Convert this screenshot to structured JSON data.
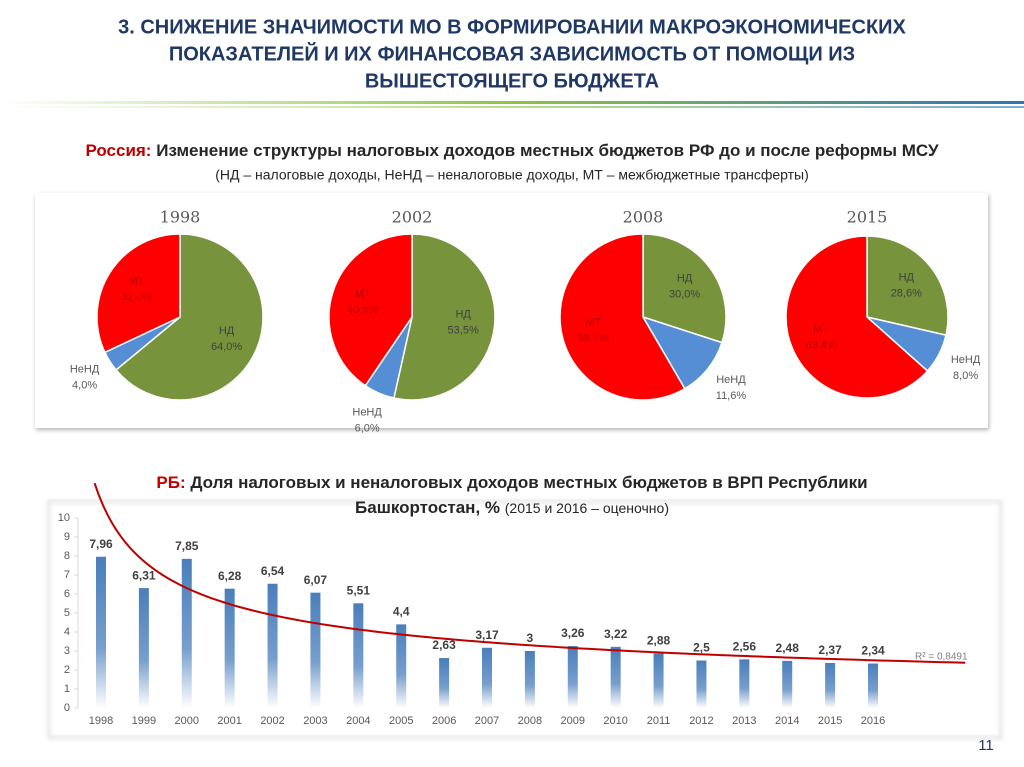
{
  "header": {
    "title_lines": [
      "3. СНИЖЕНИЕ ЗНАЧИМОСТИ МО В ФОРМИРОВАНИИ МАКРОЭКОНОМИЧЕСКИХ",
      "ПОКАЗАТЕЛЕЙ И ИХ ФИНАНСОВАЯ ЗАВИСИМОСТЬ ОТ ПОМОЩИ ИЗ",
      "ВЫШЕСТОЯЩЕГО БЮДЖЕТА"
    ]
  },
  "section1": {
    "label": "Россия:",
    "title": "Изменение структуры налоговых доходов местных бюджетов РФ до и после реформы МСУ",
    "subtitle": "(НД – налоговые доходы, НеНД – неналоговые доходы, МТ – межбюджетные трансферты)"
  },
  "section2": {
    "label": "РБ:",
    "title_lines": [
      "Доля налоговых и неналоговых доходов местных бюджетов в ВРП Республики",
      "Башкортостан, %"
    ],
    "note": "(2015 и 2016 – оценочно)"
  },
  "page_number": "11",
  "chart_data": [
    {
      "type": "pie",
      "title": "1998",
      "categories": [
        "НД",
        "НеНД",
        "МТ"
      ],
      "values": [
        64.0,
        4.0,
        32.0
      ],
      "value_labels": [
        "64,0%",
        "4,0%",
        "32,0%"
      ],
      "colors": [
        "#77933c",
        "#558ed5",
        "#ff0000"
      ]
    },
    {
      "type": "pie",
      "title": "2002",
      "categories": [
        "НД",
        "НеНД",
        "МТ"
      ],
      "values": [
        53.5,
        6.0,
        40.5
      ],
      "value_labels": [
        "53,5%",
        "6,0%",
        "40,5%"
      ],
      "colors": [
        "#77933c",
        "#558ed5",
        "#ff0000"
      ]
    },
    {
      "type": "pie",
      "title": "2008",
      "categories": [
        "НД",
        "НеНД",
        "МТ"
      ],
      "values": [
        30.0,
        11.6,
        58.4
      ],
      "value_labels": [
        "30,0%",
        "11,6%",
        "58,4%"
      ],
      "colors": [
        "#77933c",
        "#558ed5",
        "#ff0000"
      ]
    },
    {
      "type": "pie",
      "title": "2015",
      "categories": [
        "НД",
        "НеНД",
        "МТ"
      ],
      "values": [
        28.6,
        8.0,
        63.4
      ],
      "value_labels": [
        "28,6%",
        "8,0%",
        "63,4%"
      ],
      "colors": [
        "#77933c",
        "#558ed5",
        "#ff0000"
      ]
    },
    {
      "type": "bar",
      "categories": [
        "1998",
        "1999",
        "2000",
        "2001",
        "2002",
        "2003",
        "2004",
        "2005",
        "2006",
        "2007",
        "2008",
        "2009",
        "2010",
        "2011",
        "2012",
        "2013",
        "2014",
        "2015",
        "2016"
      ],
      "values": [
        7.96,
        6.31,
        7.85,
        6.28,
        6.54,
        6.07,
        5.51,
        4.4,
        2.63,
        3.17,
        3,
        3.26,
        3.22,
        2.88,
        2.5,
        2.56,
        2.48,
        2.37,
        2.34
      ],
      "value_labels": [
        "7,96",
        "6,31",
        "7,85",
        "6,28",
        "6,54",
        "6,07",
        "5,51",
        "4,4",
        "2,63",
        "3,17",
        "3",
        "3,26",
        "3,22",
        "2,88",
        "2,5",
        "2,56",
        "2,48",
        "2,37",
        "2,34"
      ],
      "color": "#4a7ebb",
      "ylim": [
        0,
        10
      ],
      "yticks": [
        0,
        1,
        2,
        3,
        4,
        5,
        6,
        7,
        8,
        9,
        10
      ],
      "trendline": "power",
      "trendline_color": "#c00000",
      "annotation": "R² = 0,8491"
    }
  ]
}
